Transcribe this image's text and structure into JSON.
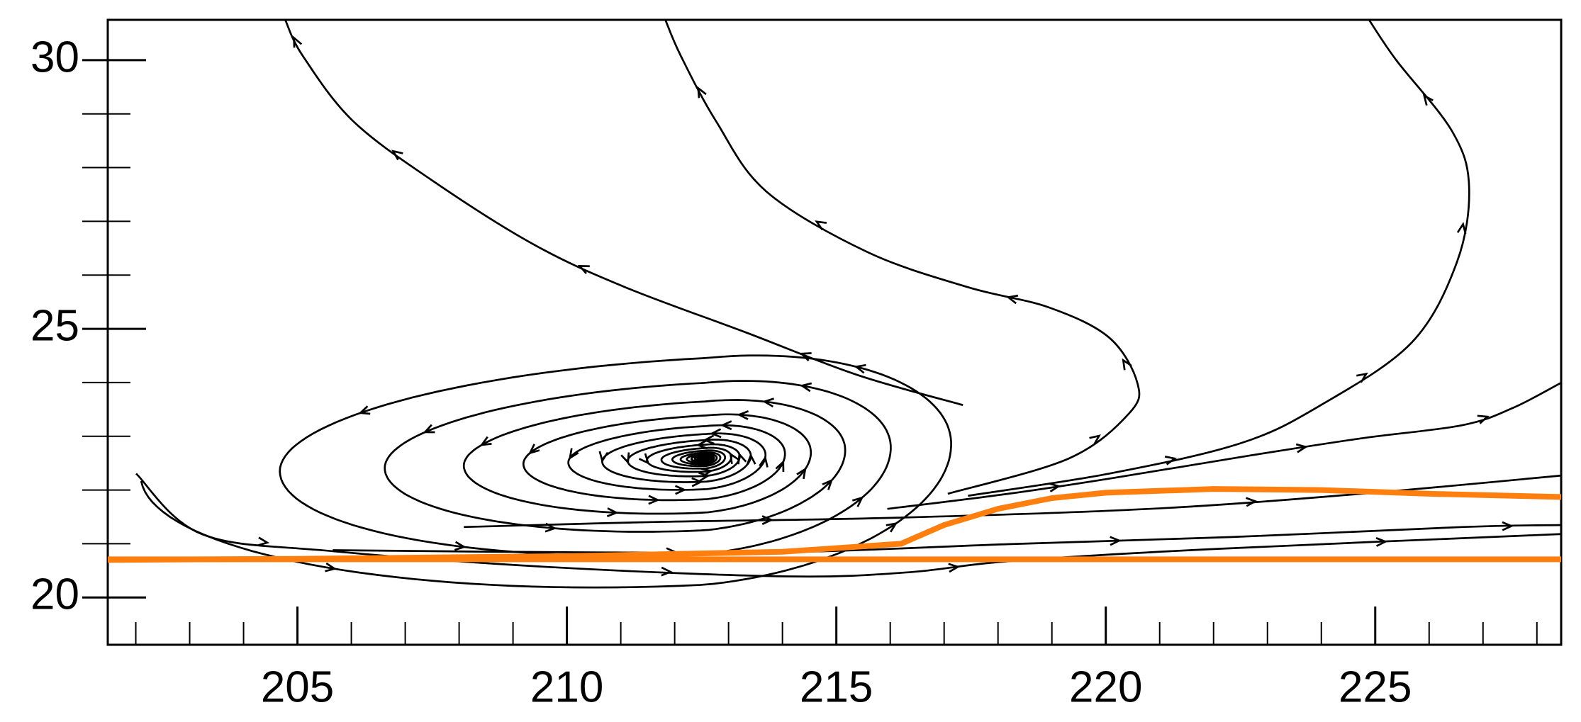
{
  "chart_data": {
    "type": "line",
    "series": [
      {
        "color": "#ff7f0e",
        "x": [
          201.48,
          228.45
        ],
        "values": [
          20.71,
          20.71
        ]
      },
      {
        "color": "#ff7f0e",
        "x": [
          201.48,
          205,
          210,
          214,
          216.2,
          217,
          218,
          219,
          220,
          222,
          224,
          226,
          228.45
        ],
        "values": [
          20.7,
          20.72,
          20.77,
          20.85,
          21.0,
          21.35,
          21.65,
          21.85,
          21.95,
          22.02,
          22.0,
          21.93,
          21.87
        ]
      }
    ],
    "xlim": [
      201.48,
      228.45
    ],
    "ylim": [
      19.12,
      30.75
    ],
    "xticks": [
      205,
      210,
      215,
      220,
      225
    ],
    "yticks": [
      20,
      25,
      30
    ],
    "xminorticks": [
      202,
      203,
      204,
      206,
      207,
      208,
      209,
      211,
      212,
      213,
      214,
      216,
      217,
      218,
      219,
      221,
      222,
      223,
      224,
      226,
      227,
      228
    ],
    "yminorticks": [
      21,
      22,
      23,
      24,
      26,
      27,
      28,
      29
    ]
  }
}
